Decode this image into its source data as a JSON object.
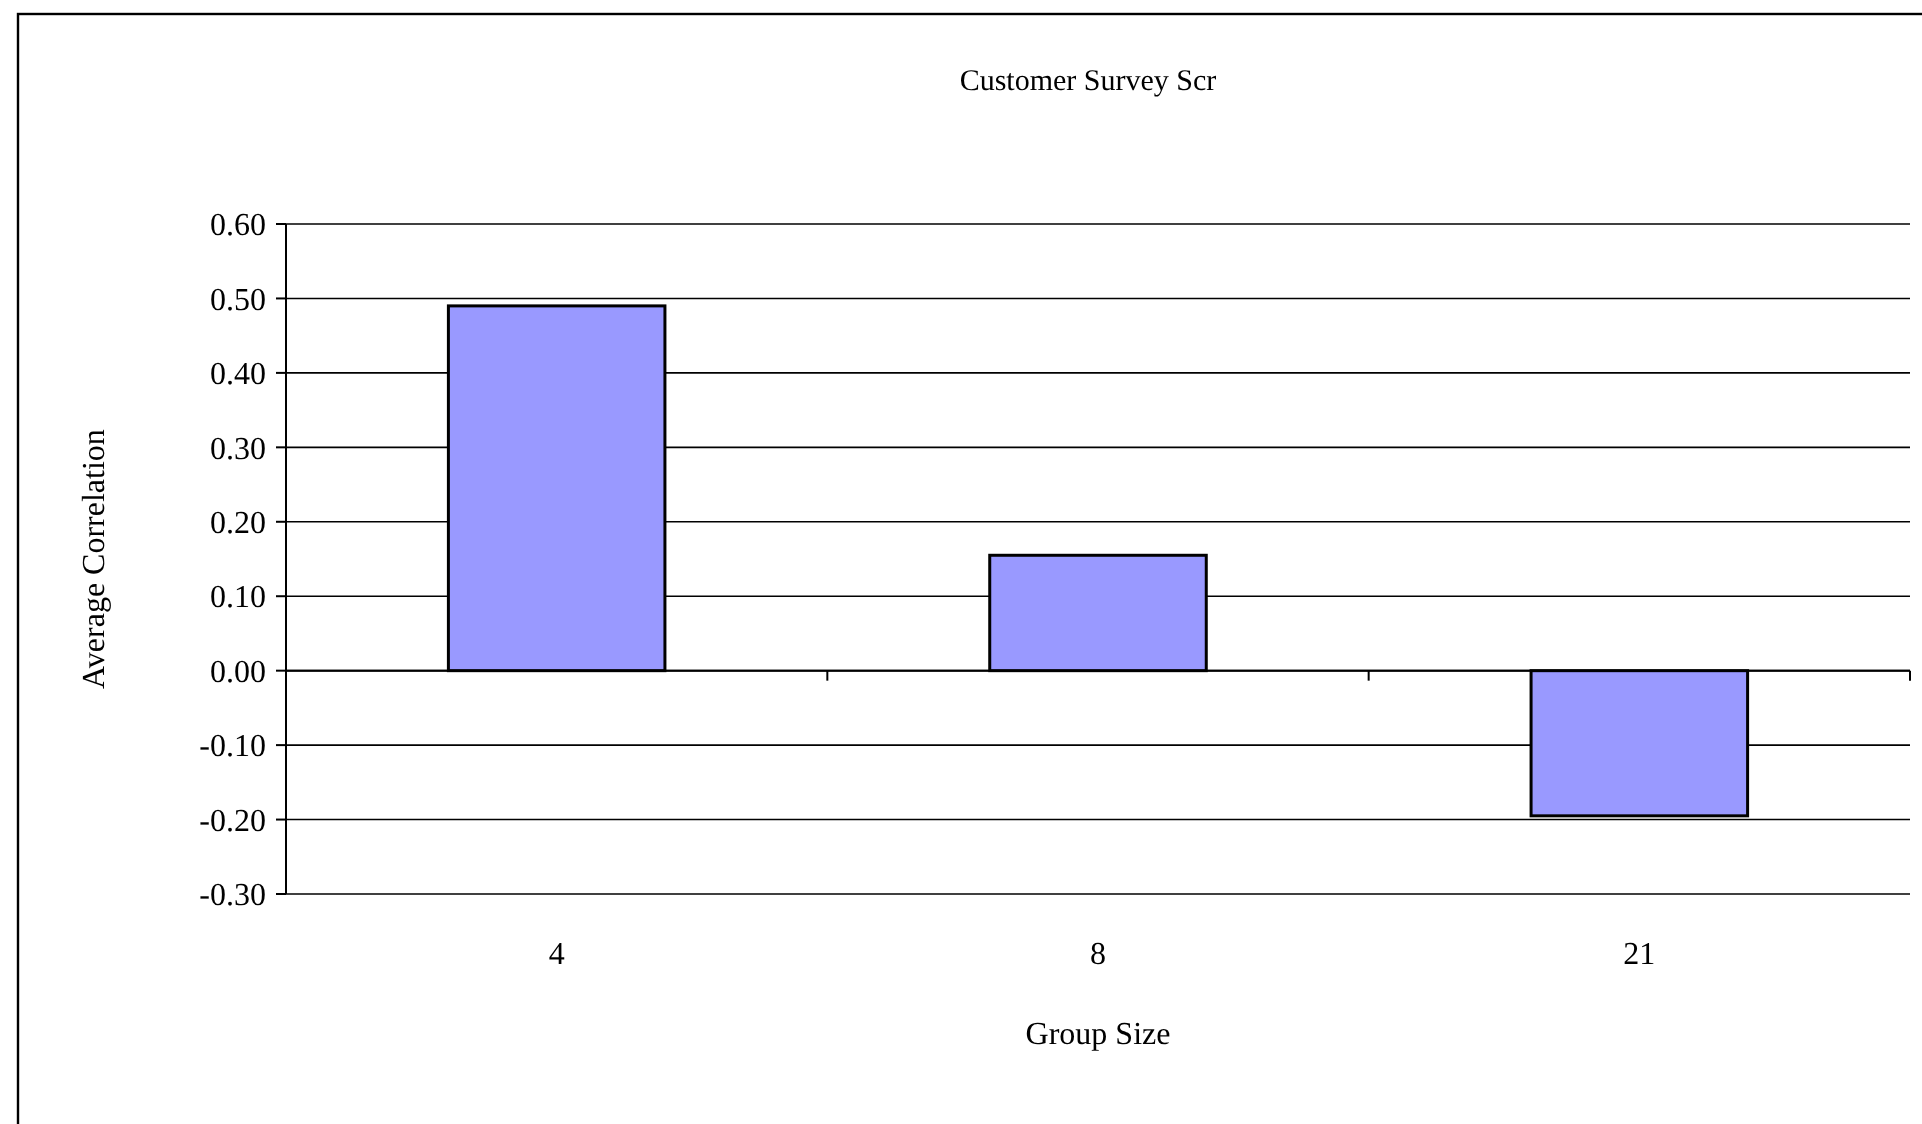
{
  "chart_data": {
    "type": "bar",
    "title": "Customer Survey Scr",
    "xlabel": "Group Size",
    "ylabel": "Average Correlation",
    "categories": [
      "4",
      "8",
      "21"
    ],
    "values": [
      0.49,
      0.155,
      -0.195
    ],
    "color": "#9999ff",
    "ylim": [
      -0.3,
      0.6
    ],
    "yticks": [
      {
        "value": -0.3,
        "label": "-0.30"
      },
      {
        "value": -0.2,
        "label": "-0.20"
      },
      {
        "value": -0.1,
        "label": "-0.10"
      },
      {
        "value": 0,
        "label": "0.00"
      },
      {
        "value": 0.1,
        "label": "0.10"
      },
      {
        "value": 0.2,
        "label": "0.20"
      },
      {
        "value": 0.3,
        "label": "0.30"
      },
      {
        "value": 0.4,
        "label": "0.40"
      },
      {
        "value": 0.5,
        "label": "0.50"
      },
      {
        "value": 0.6,
        "label": "0.60"
      }
    ],
    "grid": "y"
  }
}
